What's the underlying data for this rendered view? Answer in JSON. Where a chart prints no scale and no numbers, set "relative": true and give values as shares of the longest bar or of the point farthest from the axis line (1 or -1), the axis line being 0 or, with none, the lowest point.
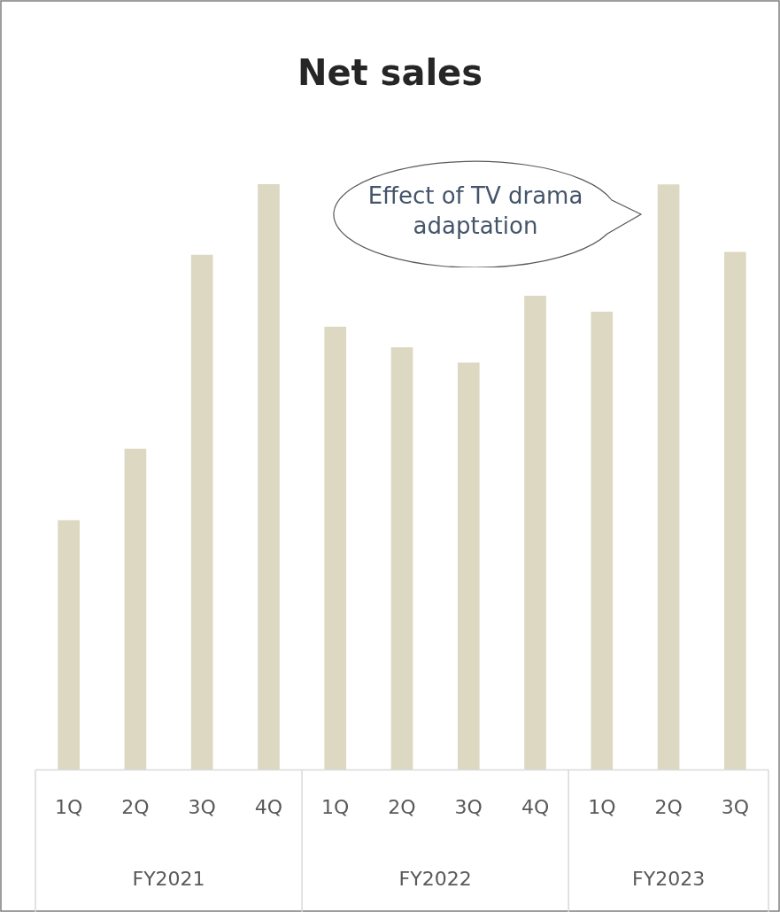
{
  "chart_data": {
    "type": "bar",
    "title": "Net sales",
    "relative": true,
    "categories": [
      "1Q",
      "2Q",
      "3Q",
      "4Q",
      "1Q",
      "2Q",
      "3Q",
      "4Q",
      "1Q",
      "2Q",
      "3Q"
    ],
    "values": [
      0.426,
      0.548,
      0.879,
      1,
      0.756,
      0.721,
      0.695,
      0.809,
      0.782,
      0.999,
      0.884
    ],
    "color": "#ddd8c2",
    "annotations": [
      "Effect of TV drama adaptation",
      "FY2021",
      "FY2022",
      "FY2023"
    ],
    "grid": false,
    "legend": false
  }
}
